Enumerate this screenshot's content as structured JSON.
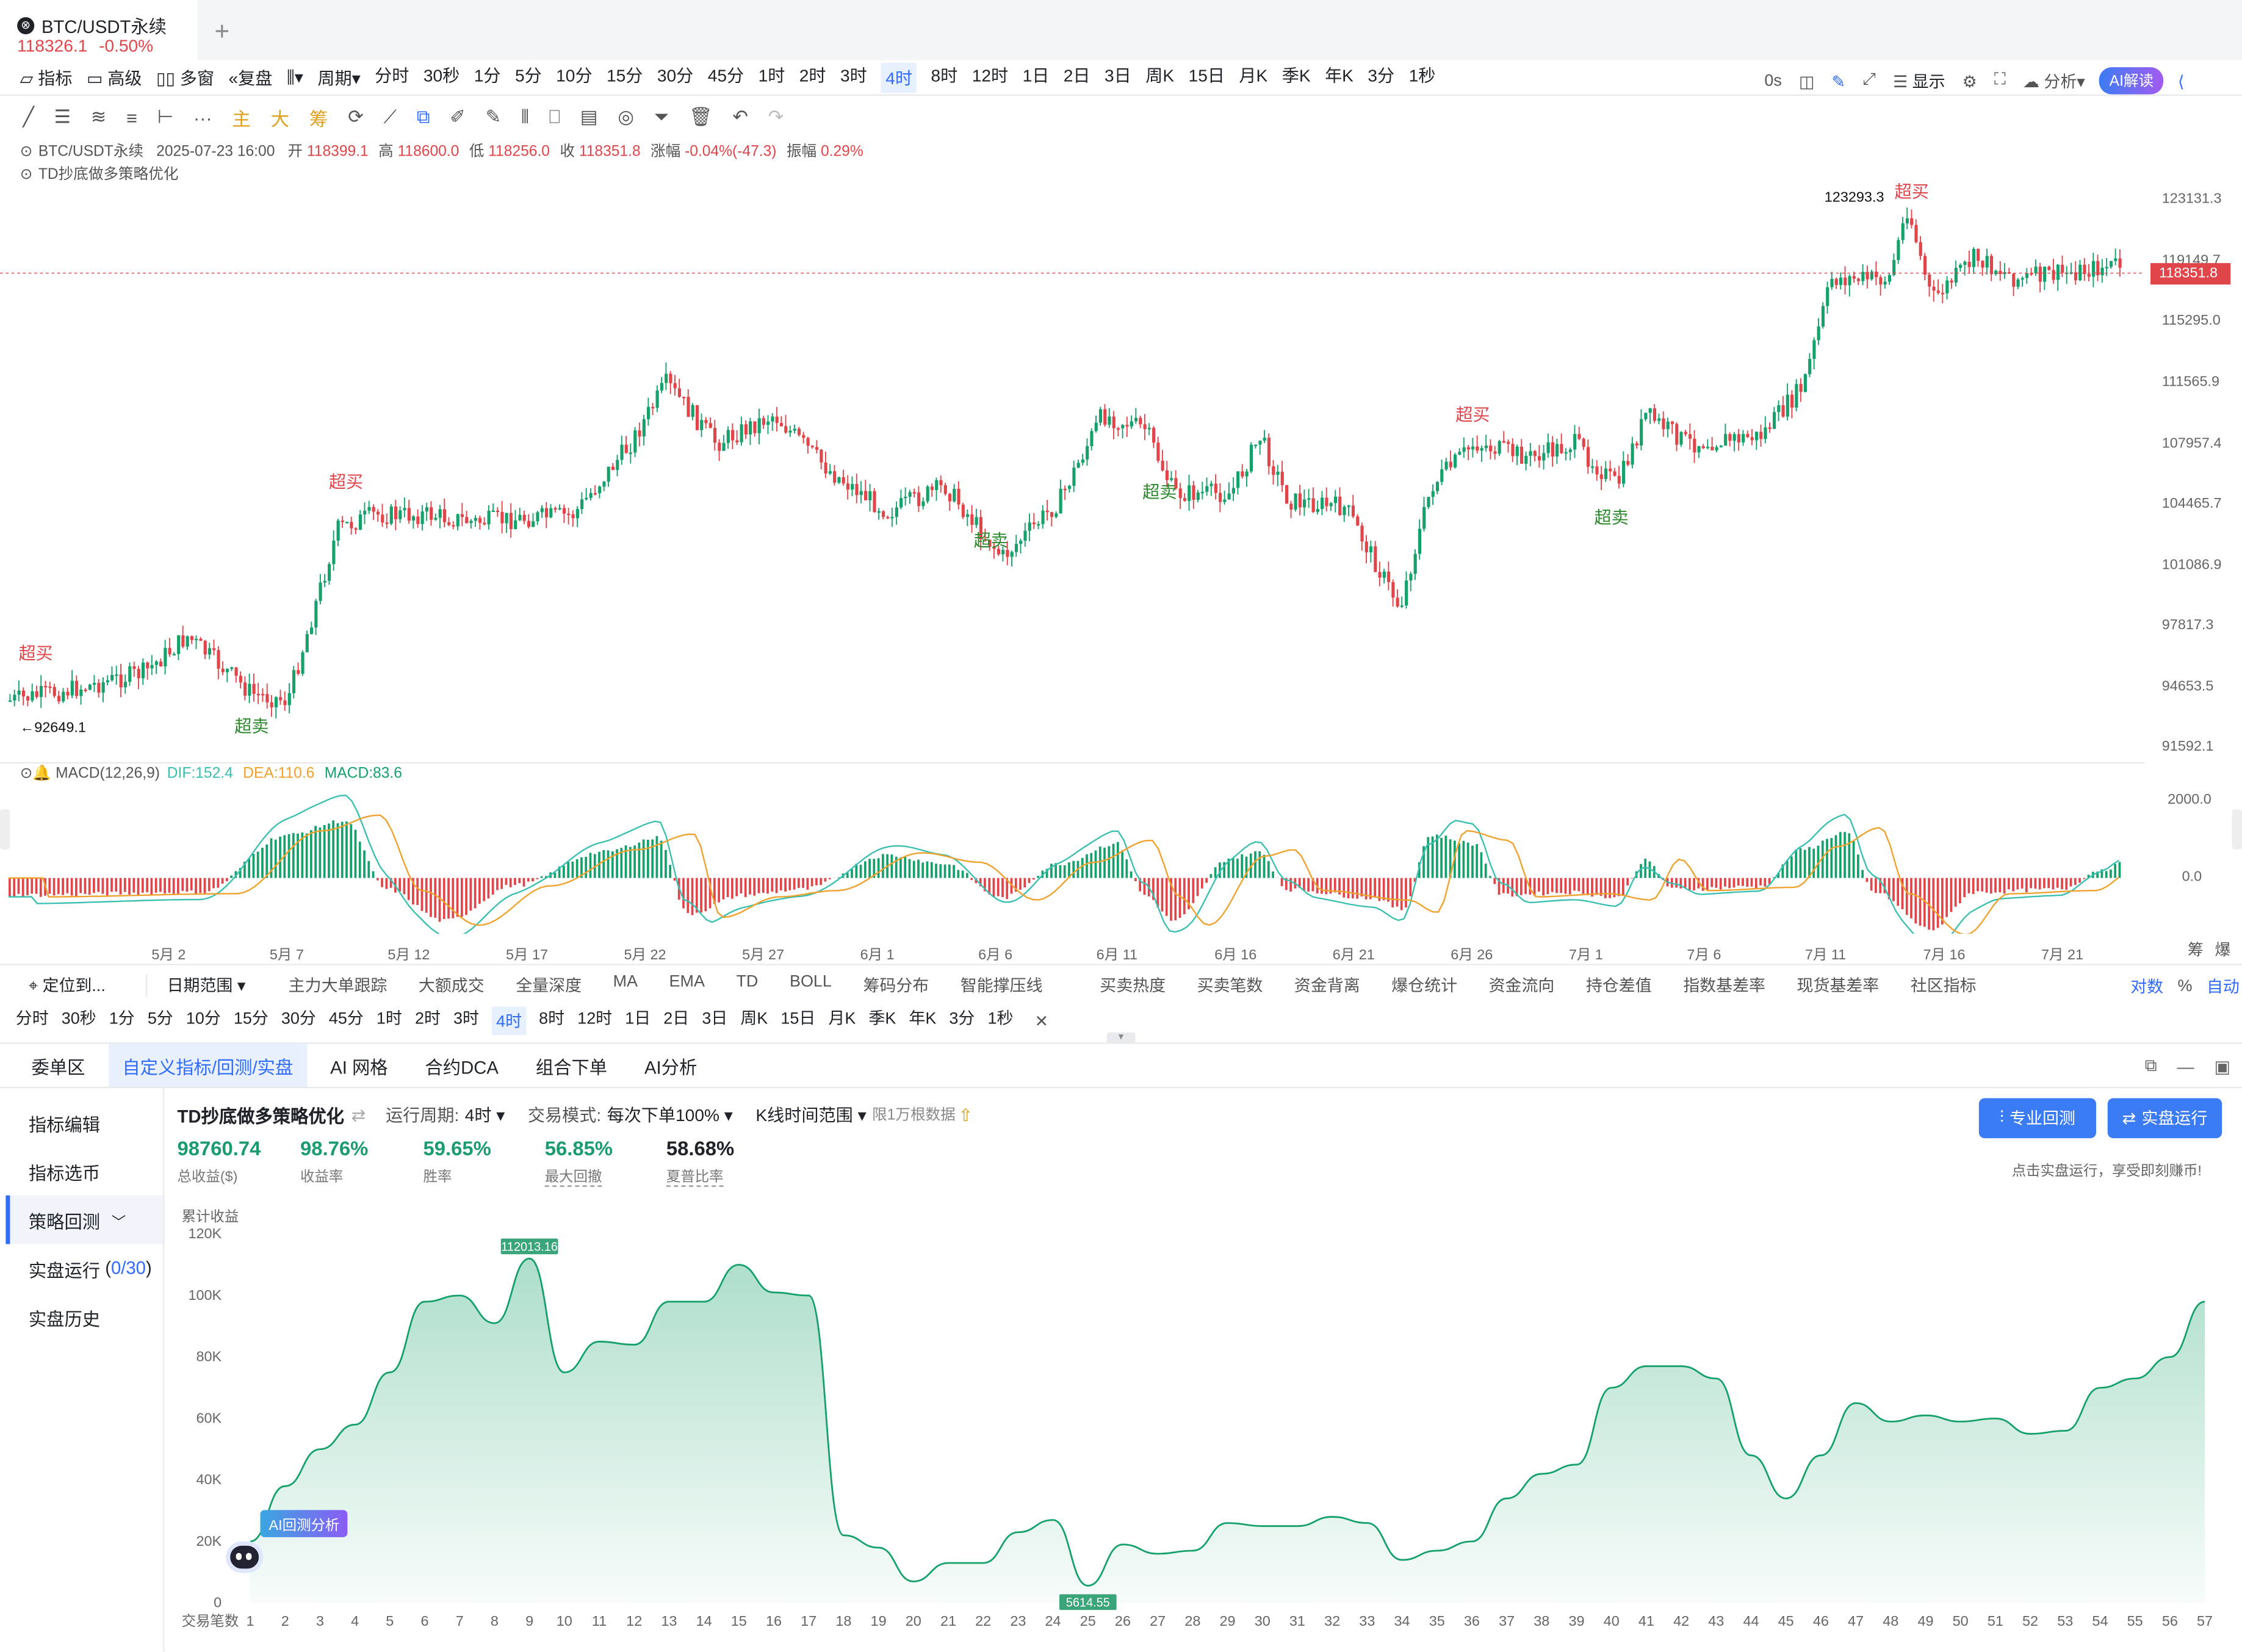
{
  "tab": {
    "symbol": "BTC/USDT永续",
    "price": "118326.1",
    "change": "-0.50%"
  },
  "toolbar": {
    "indicator": "指标",
    "advanced": "高级",
    "multi": "多窗",
    "replay": "复盘",
    "cycle": "周期",
    "periods": [
      "分时",
      "30秒",
      "1分",
      "5分",
      "10分",
      "15分",
      "30分",
      "45分",
      "1时",
      "2时",
      "3时",
      "4时",
      "8时",
      "12时",
      "1日",
      "2日",
      "3日",
      "周K",
      "15日",
      "月K",
      "季K",
      "年K",
      "3分",
      "1秒"
    ],
    "active_period": "4时",
    "delay": "0s",
    "display": "显示",
    "analysis": "分析",
    "ai": "AI解读"
  },
  "drawbar": [
    "主",
    "大",
    "筹"
  ],
  "ohlc": {
    "symbol": "BTC/USDT永续",
    "time": "2025-07-23 16:00",
    "open_l": "开",
    "open": "118399.1",
    "high_l": "高",
    "high": "118600.0",
    "low_l": "低",
    "low": "118256.0",
    "close_l": "收",
    "close": "118351.8",
    "chg_l": "涨幅",
    "chg": "-0.04%(-47.3)",
    "amp_l": "振幅",
    "amp": "0.29%"
  },
  "strategy_name": "TD抄底做多策略优化",
  "price_axis": [
    "123131.3",
    "119149.7",
    "115295.0",
    "111565.9",
    "107957.4",
    "104465.7",
    "101086.9",
    "97817.3",
    "94653.5",
    "91592.1"
  ],
  "last_price": "118351.8",
  "max_marker": "123293.3",
  "min_marker": "92649.1",
  "signals": {
    "buy": "超买",
    "sell": "超卖"
  },
  "macd": {
    "label": "MACD(12,26,9)",
    "dif": "DIF:152.4",
    "dea": "DEA:110.6",
    "macd": "MACD:83.6",
    "axis": [
      "2000.0",
      "0.0"
    ]
  },
  "dates": [
    "5月 2",
    "5月 7",
    "5月 12",
    "5月 17",
    "5月 22",
    "5月 27",
    "6月 1",
    "6月 6",
    "6月 11",
    "6月 16",
    "6月 21",
    "6月 26",
    "7月 1",
    "7月 6",
    "7月 11",
    "7月 16",
    "7月 21"
  ],
  "corner": {
    "chips": "筹",
    "burst": "爆"
  },
  "indbar": {
    "locate": "定位到...",
    "range": "日期范围",
    "items": [
      "主力大单跟踪",
      "大额成交",
      "全量深度",
      "MA",
      "EMA",
      "TD",
      "BOLL",
      "筹码分布",
      "智能撑压线",
      "买卖热度",
      "买卖笔数",
      "资金背离",
      "爆仓统计",
      "资金流向",
      "持仓差值",
      "指数基差率",
      "现货基差率",
      "社区指标"
    ],
    "log": "对数",
    "pct": "%",
    "auto": "自动"
  },
  "bottom_tabs": [
    "委单区",
    "自定义指标/回测/实盘",
    "AI 网格",
    "合约DCA",
    "组合下单",
    "AI分析"
  ],
  "side": [
    "指标编辑",
    "指标选币",
    "策略回测",
    "实盘运行",
    "实盘历史"
  ],
  "live_count": "0/30",
  "bt": {
    "name": "TD抄底做多策略优化",
    "period_l": "运行周期:",
    "period": "4时",
    "mode_l": "交易模式:",
    "mode": "每次下单100%",
    "range": "K线时间范围",
    "limit": "限1万根数据"
  },
  "stats": [
    {
      "v": "98760.74",
      "l": "总收益($)"
    },
    {
      "v": "98.76%",
      "l": "收益率"
    },
    {
      "v": "59.65%",
      "l": "胜率"
    },
    {
      "v": "56.85%",
      "l": "最大回撤"
    },
    {
      "v": "58.68%",
      "l": "夏普比率"
    }
  ],
  "btns": {
    "pro": "专业回测",
    "live": "实盘运行",
    "hint": "点击实盘运行，享受即刻赚币!"
  },
  "equity": {
    "ylabel": "累计收益",
    "xlabel": "交易笔数",
    "yticks": [
      "120K",
      "100K",
      "80K",
      "60K",
      "40K",
      "20K",
      "0"
    ],
    "max_label": "112013.16",
    "min_label": "5614.55",
    "ai_badge": "AI回测分析"
  },
  "chart_data": {
    "type": "area",
    "title": "",
    "xlabel": "交易笔数",
    "ylabel": "累计收益",
    "ylim": [
      0,
      120000
    ],
    "x": [
      1,
      2,
      3,
      4,
      5,
      6,
      7,
      8,
      9,
      10,
      11,
      12,
      13,
      14,
      15,
      16,
      17,
      18,
      19,
      20,
      21,
      22,
      23,
      24,
      25,
      26,
      27,
      28,
      29,
      30,
      31,
      32,
      33,
      34,
      35,
      36,
      37,
      38,
      39,
      40,
      41,
      42,
      43,
      44,
      45,
      46,
      47,
      48,
      49,
      50,
      51,
      52,
      53,
      54,
      55,
      56,
      57
    ],
    "series": [
      {
        "values": [
          20000,
          38000,
          50000,
          58000,
          75000,
          98000,
          100000,
          91000,
          112013,
          75000,
          85000,
          84000,
          98000,
          98000,
          110000,
          101000,
          100000,
          22000,
          18000,
          7000,
          13000,
          13000,
          23000,
          27000,
          5614,
          19000,
          16000,
          17000,
          26000,
          25000,
          25000,
          28000,
          26000,
          14000,
          17000,
          20000,
          34000,
          42000,
          45000,
          70000,
          77000,
          77000,
          73000,
          48000,
          34000,
          48000,
          65000,
          59000,
          61000,
          59000,
          60000,
          55000,
          56000,
          70000,
          73000,
          80000,
          98000
        ]
      }
    ]
  },
  "colors": {
    "up": "#16a16a",
    "down": "#e0454a",
    "accent": "#2f6bff",
    "dif": "#39bfb1",
    "dea": "#f0a12b"
  }
}
